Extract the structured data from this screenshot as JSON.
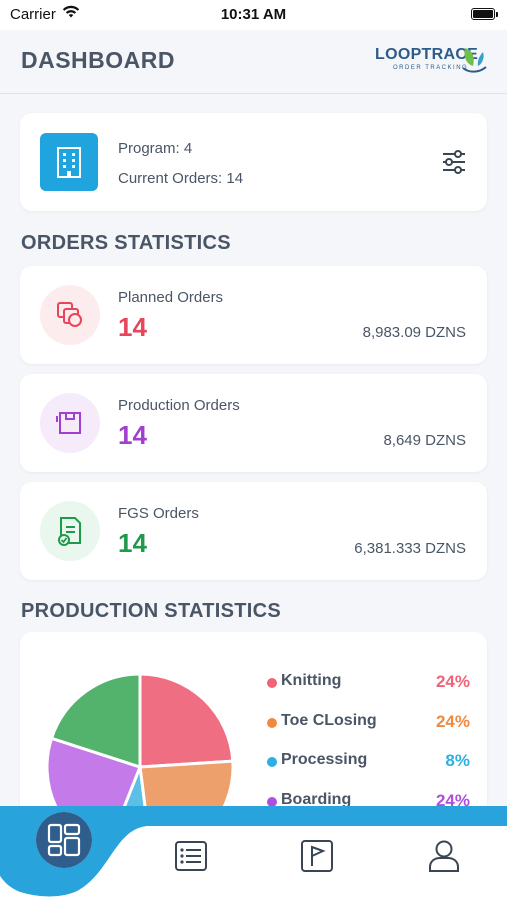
{
  "status_bar": {
    "carrier": "Carrier",
    "time": "10:31 AM"
  },
  "header": {
    "title": "DASHBOARD",
    "logo": {
      "text": "LOOPTRACE",
      "subtitle": "ORDER TRACKING"
    }
  },
  "summary": {
    "program_label": "Program: 4",
    "current_orders_label": "Current Orders: 14"
  },
  "orders_section_title": "ORDERS STATISTICS",
  "orders": [
    {
      "label": "Planned Orders",
      "count": "14",
      "qty": "8,983.09 DZNS",
      "color": "#e8445a",
      "bg": "#fdecee",
      "icon": "layers-icon"
    },
    {
      "label": "Production Orders",
      "count": "14",
      "qty": "8,649 DZNS",
      "color": "#a13fd0",
      "bg": "#f5ebfb",
      "icon": "box-icon"
    },
    {
      "label": "FGS Orders",
      "count": "14",
      "qty": "6,381.333 DZNS",
      "color": "#1f9a4a",
      "bg": "#eaf7ee",
      "icon": "document-check-icon"
    }
  ],
  "production_section_title": "PRODUCTION STATISTICS",
  "production": [
    {
      "name": "Knitting",
      "pct": "24%",
      "color": "#f06377",
      "value": 24
    },
    {
      "name": "Toe CLosing",
      "pct": "24%",
      "color": "#f08a3f",
      "value": 24
    },
    {
      "name": "Processing",
      "pct": "8%",
      "color": "#2faee3",
      "value": 8
    },
    {
      "name": "Boarding",
      "pct": "24%",
      "color": "#b04ee0",
      "value": 24
    }
  ],
  "chart_colors": {
    "knitting": "#f06e82",
    "toe_closing": "#eda06b",
    "processing": "#5bbfe6",
    "boarding": "#c57aea",
    "other": "#53b36d"
  },
  "tabbar": {
    "accent": "#29a3dc",
    "items": [
      "dashboard-icon",
      "order-list-icon",
      "flag-icon",
      "user-icon"
    ]
  }
}
